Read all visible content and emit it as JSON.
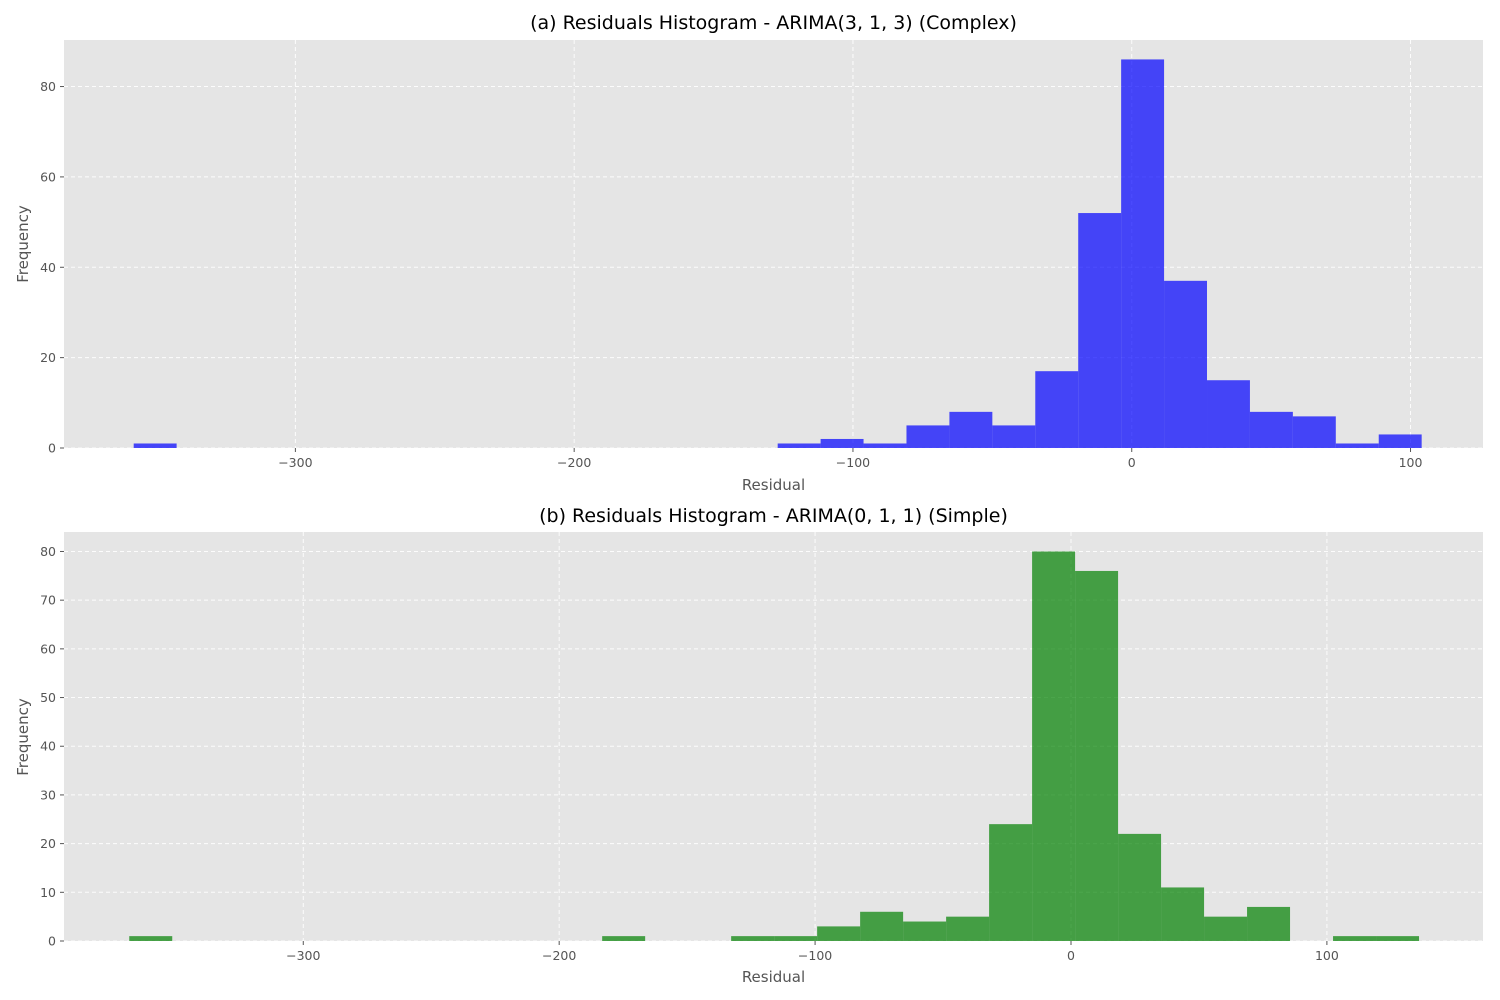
{
  "chart_data": [
    {
      "type": "bar",
      "title": "(a) Residuals Histogram - ARIMA(3, 1, 3) (Complex)",
      "xlabel": "Residual",
      "ylabel": "Frequency",
      "xlim": [
        -383,
        126
      ],
      "ylim": [
        0,
        90.3
      ],
      "xticks": [
        -300,
        -200,
        -100,
        0,
        100
      ],
      "yticks": [
        0,
        20,
        40,
        60,
        80
      ],
      "grid": true,
      "color": "#0000ff",
      "bin_edges": [
        -358,
        -342.6,
        -327.2,
        -311.8,
        -296.4,
        -281,
        -265.6,
        -250.2,
        -234.8,
        -219.4,
        -204,
        -188.6,
        -173.2,
        -157.8,
        -142.4,
        -127,
        -111.6,
        -96.2,
        -80.8,
        -65.4,
        -50,
        -34.6,
        -19.2,
        -3.8,
        11.6,
        27,
        42.4,
        57.8,
        73.2,
        88.6,
        104
      ],
      "values": [
        1,
        0,
        0,
        0,
        0,
        0,
        0,
        0,
        0,
        0,
        0,
        0,
        0,
        0,
        0,
        1,
        2,
        1,
        5,
        8,
        5,
        17,
        52,
        86,
        37,
        15,
        8,
        7,
        1,
        3
      ]
    },
    {
      "type": "bar",
      "title": "(b) Residuals Histogram - ARIMA(0, 1, 1) (Simple)",
      "xlabel": "Residual",
      "ylabel": "Frequency",
      "xlim": [
        -393.5,
        161
      ],
      "ylim": [
        0,
        84
      ],
      "xticks": [
        -300,
        -200,
        -100,
        0,
        100
      ],
      "yticks": [
        0,
        10,
        20,
        30,
        40,
        50,
        60,
        70,
        80
      ],
      "grid": true,
      "color": "#008000",
      "bin_edges": [
        -368,
        -351.2,
        -334.4,
        -317.6,
        -300.8,
        -284,
        -267.2,
        -250.4,
        -233.6,
        -216.8,
        -200,
        -183.2,
        -166.4,
        -149.6,
        -132.8,
        -116,
        -99.2,
        -82.4,
        -65.6,
        -48.8,
        -32,
        -15.2,
        1.6,
        18.4,
        35.2,
        52,
        68.8,
        85.6,
        102.4,
        119.2,
        136
      ],
      "values": [
        1,
        0,
        0,
        0,
        0,
        0,
        0,
        0,
        0,
        0,
        0,
        1,
        0,
        0,
        1,
        1,
        3,
        6,
        4,
        5,
        24,
        80,
        76,
        22,
        11,
        5,
        7,
        0,
        1,
        1
      ]
    }
  ]
}
